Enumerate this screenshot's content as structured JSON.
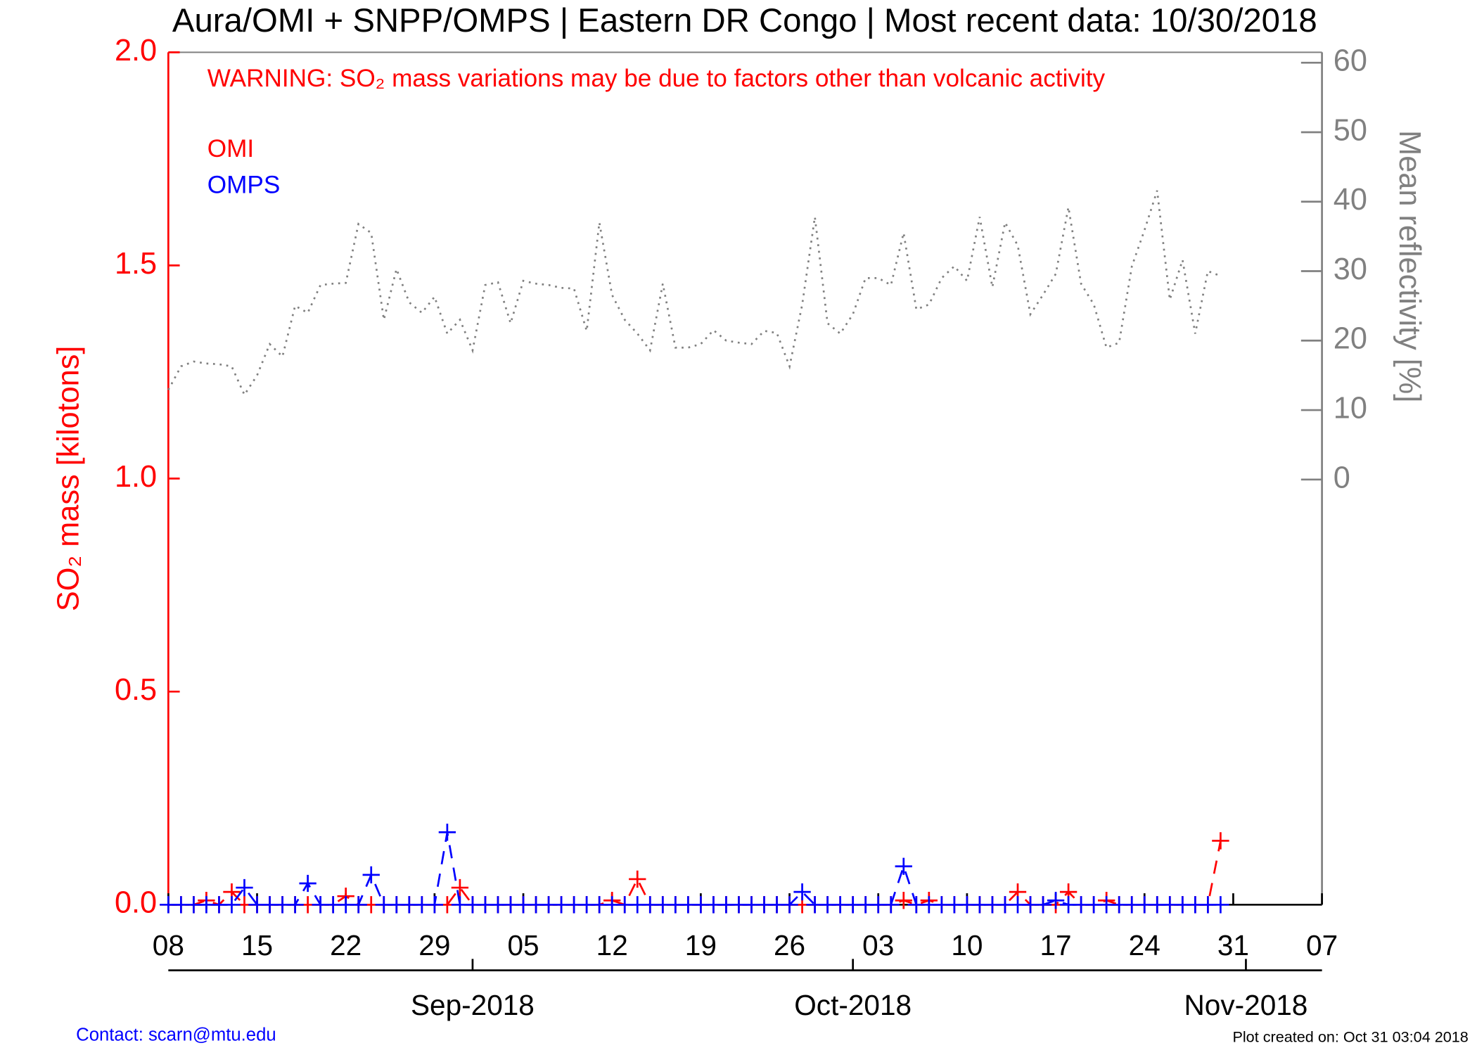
{
  "chart_data": {
    "type": "line",
    "title": "Aura/OMI + SNPP/OMPS | Eastern DR Congo | Most recent data: 10/30/2018",
    "annotation": "WARNING: SO₂ mass variations may be due to factors other than volcanic activity",
    "ylabel": "SO₂ mass [kilotons]",
    "y2label": "Mean reflectivity [%]",
    "contact": "Contact: scarn@mtu.edu",
    "created": "Plot created on: Oct 31 03:04 2018",
    "x": [
      "2018-08-08",
      "2018-08-09",
      "2018-08-10",
      "2018-08-11",
      "2018-08-12",
      "2018-08-13",
      "2018-08-14",
      "2018-08-15",
      "2018-08-16",
      "2018-08-17",
      "2018-08-18",
      "2018-08-19",
      "2018-08-20",
      "2018-08-21",
      "2018-08-22",
      "2018-08-23",
      "2018-08-24",
      "2018-08-25",
      "2018-08-26",
      "2018-08-27",
      "2018-08-28",
      "2018-08-29",
      "2018-08-30",
      "2018-08-31",
      "2018-09-01",
      "2018-09-02",
      "2018-09-03",
      "2018-09-04",
      "2018-09-05",
      "2018-09-06",
      "2018-09-07",
      "2018-09-08",
      "2018-09-09",
      "2018-09-10",
      "2018-09-11",
      "2018-09-12",
      "2018-09-13",
      "2018-09-14",
      "2018-09-15",
      "2018-09-16",
      "2018-09-17",
      "2018-09-18",
      "2018-09-19",
      "2018-09-20",
      "2018-09-21",
      "2018-09-22",
      "2018-09-23",
      "2018-09-24",
      "2018-09-25",
      "2018-09-26",
      "2018-09-27",
      "2018-09-28",
      "2018-09-29",
      "2018-09-30",
      "2018-10-01",
      "2018-10-02",
      "2018-10-03",
      "2018-10-04",
      "2018-10-05",
      "2018-10-06",
      "2018-10-07",
      "2018-10-08",
      "2018-10-09",
      "2018-10-10",
      "2018-10-11",
      "2018-10-12",
      "2018-10-13",
      "2018-10-14",
      "2018-10-15",
      "2018-10-16",
      "2018-10-17",
      "2018-10-18",
      "2018-10-19",
      "2018-10-20",
      "2018-10-21",
      "2018-10-22",
      "2018-10-23",
      "2018-10-24",
      "2018-10-25",
      "2018-10-26",
      "2018-10-27",
      "2018-10-28",
      "2018-10-29",
      "2018-10-30"
    ],
    "series": [
      {
        "name": "OMI",
        "color": "#ff0000",
        "axis": "y",
        "style": "dashed",
        "marker": "plus",
        "values": [
          0,
          0,
          0,
          0.01,
          0,
          0.03,
          0,
          0,
          0,
          0,
          0,
          0,
          0,
          0,
          0.02,
          0,
          0,
          0,
          0,
          0,
          0,
          0,
          0,
          0.04,
          0,
          0,
          0,
          0,
          0,
          0,
          0,
          0,
          0,
          0,
          0,
          0.01,
          0,
          0.06,
          0,
          0,
          0,
          0,
          0,
          0,
          0,
          0,
          0,
          0,
          0,
          0,
          0,
          0,
          0,
          0,
          0,
          0,
          0,
          0,
          0.01,
          0,
          0.01,
          0,
          0,
          0,
          0,
          0,
          0,
          0.03,
          0,
          0,
          0,
          0.03,
          0,
          0,
          0.01,
          0,
          0,
          0,
          0,
          0,
          0,
          0,
          0,
          0.15
        ]
      },
      {
        "name": "OMPS",
        "color": "#0000ff",
        "axis": "y",
        "style": "dashed",
        "marker": "plus",
        "values": [
          0,
          0,
          0,
          0,
          0,
          0,
          0.04,
          0,
          0,
          0,
          0,
          0.05,
          0,
          0,
          0,
          0,
          0.07,
          0,
          0,
          0,
          0,
          0,
          0.17,
          0,
          0,
          0,
          0,
          0,
          0,
          0,
          0,
          0,
          0,
          0,
          0,
          0,
          0,
          0,
          0,
          0,
          0,
          0,
          0,
          0,
          0,
          0,
          0,
          0,
          0,
          0,
          0.03,
          0,
          0,
          0,
          0,
          0,
          0,
          0,
          0.09,
          0,
          0,
          0,
          0,
          0,
          0,
          0,
          0,
          0,
          0,
          0,
          0.01,
          0,
          0,
          0,
          0,
          0,
          0,
          0,
          0,
          0,
          0,
          0,
          0,
          0
        ]
      },
      {
        "color": "#808080",
        "axis": "y2",
        "style": "dotted",
        "values": [
          12.9,
          16.3,
          17,
          16.7,
          16.6,
          16.3,
          12.2,
          15,
          19.5,
          17.7,
          25,
          24,
          28,
          28.2,
          28.3,
          36.8,
          35.5,
          23,
          30.3,
          25.5,
          24,
          26.3,
          21,
          23,
          18.6,
          28,
          28.4,
          22.5,
          28.6,
          28.2,
          28,
          27.6,
          27.5,
          21.4,
          37,
          26.6,
          23,
          21,
          18.6,
          28.2,
          19,
          19,
          19.5,
          21.5,
          20,
          19.7,
          19.5,
          21.4,
          21.1,
          16.3,
          25.2,
          37.8,
          22.5,
          21,
          23.8,
          29,
          29,
          28,
          35.5,
          24.5,
          25.2,
          29,
          30.7,
          28.6,
          37.8,
          27.7,
          37,
          33.7,
          23.8,
          26.6,
          29.6,
          39.2,
          28.2,
          25.2,
          19,
          19.7,
          30.7,
          35.9,
          41.6,
          25.9,
          31.6,
          21,
          30,
          29.3
        ]
      }
    ],
    "xlim": [
      "2018-08-08",
      "2018-11-07"
    ],
    "xticks": [
      {
        "value": "2018-08-08",
        "label": "08"
      },
      {
        "value": "2018-08-15",
        "label": "15"
      },
      {
        "value": "2018-08-22",
        "label": "22"
      },
      {
        "value": "2018-08-29",
        "label": "29"
      },
      {
        "value": "2018-09-05",
        "label": "05"
      },
      {
        "value": "2018-09-12",
        "label": "12"
      },
      {
        "value": "2018-09-19",
        "label": "19"
      },
      {
        "value": "2018-09-26",
        "label": "26"
      },
      {
        "value": "2018-10-03",
        "label": "03"
      },
      {
        "value": "2018-10-10",
        "label": "10"
      },
      {
        "value": "2018-10-17",
        "label": "17"
      },
      {
        "value": "2018-10-24",
        "label": "24"
      },
      {
        "value": "2018-10-31",
        "label": "31"
      },
      {
        "value": "2018-11-07",
        "label": "07"
      }
    ],
    "month_ticks": [
      {
        "value": "2018-09-01",
        "label": "Sep-2018"
      },
      {
        "value": "2018-10-01",
        "label": "Oct-2018"
      },
      {
        "value": "2018-11-01",
        "label": "Nov-2018"
      }
    ],
    "ylim": [
      0,
      2.0
    ],
    "yticks": [
      {
        "value": 0,
        "label": "0.0"
      },
      {
        "value": 0.5,
        "label": "0.5"
      },
      {
        "value": 1,
        "label": "1.0"
      },
      {
        "value": 1.5,
        "label": "1.5"
      },
      {
        "value": 2,
        "label": "2.0"
      }
    ],
    "y2lim": [
      -61.2,
      61.5
    ],
    "y2ticks": [
      0,
      10,
      20,
      30,
      40,
      50,
      60
    ]
  }
}
